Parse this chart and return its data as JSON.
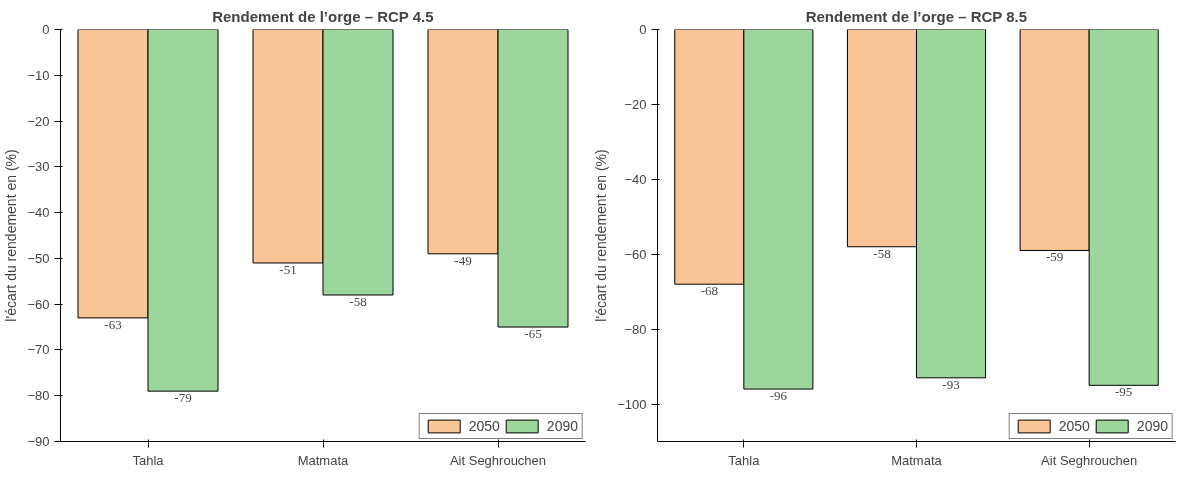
{
  "chart_data": [
    {
      "type": "bar",
      "title": "Rendement de l’orge – RCP 4.5",
      "ylabel": "l'écart du rendement en (%)",
      "categories": [
        "Tahla",
        "Matmata",
        "Ait Seghrouchen"
      ],
      "series": [
        {
          "name": "2050",
          "color": "#f9c596",
          "values": [
            -63,
            -51,
            -49
          ]
        },
        {
          "name": "2090",
          "color": "#9dd69c",
          "values": [
            -79,
            -58,
            -65
          ]
        }
      ],
      "ylim": [
        -90,
        0
      ],
      "yticks": [
        0,
        -10,
        -20,
        -30,
        -40,
        -50,
        -60,
        -70,
        -80,
        -90
      ],
      "data_labels": true,
      "legend": "bottom right",
      "grid": false
    },
    {
      "type": "bar",
      "title": "Rendement de l’orge – RCP 8.5",
      "ylabel": "l'écart du rendement en (%)",
      "categories": [
        "Tahla",
        "Matmata",
        "Ait Seghrouchen"
      ],
      "series": [
        {
          "name": "2050",
          "color": "#f9c596",
          "values": [
            -68,
            -58,
            -59
          ]
        },
        {
          "name": "2090",
          "color": "#9dd69c",
          "values": [
            -96,
            -93,
            -95
          ]
        }
      ],
      "ylim": [
        -110,
        0
      ],
      "yticks": [
        0,
        -20,
        -40,
        -60,
        -80,
        -100
      ],
      "data_labels": true,
      "legend": "bottom right",
      "grid": false
    }
  ]
}
